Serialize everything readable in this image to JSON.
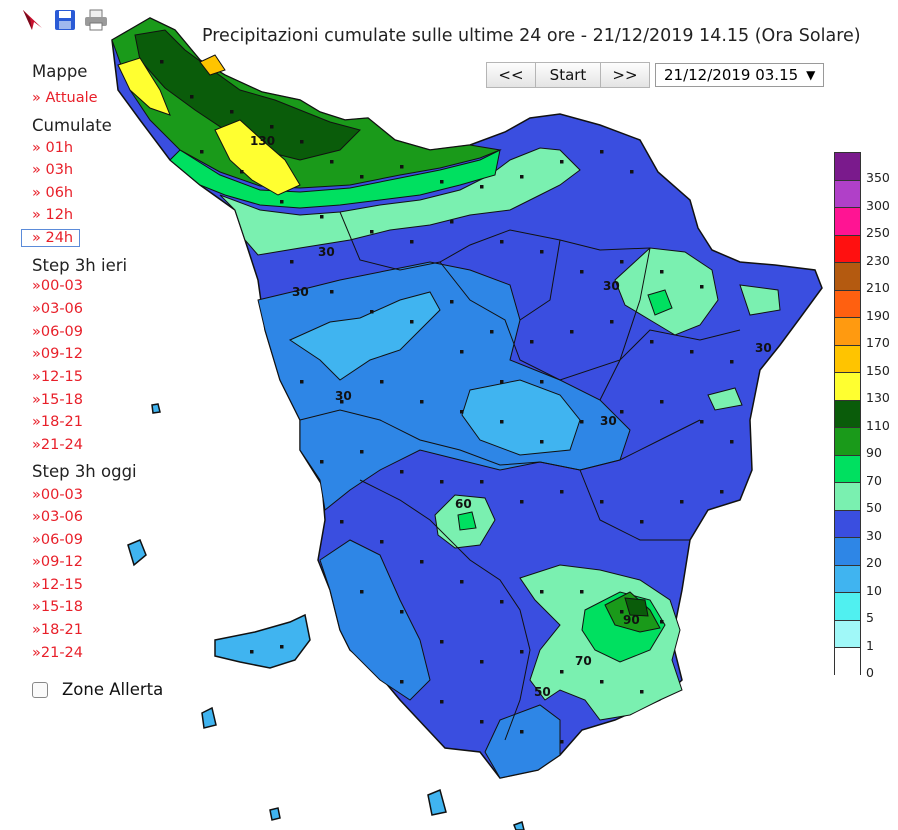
{
  "title": "Precipitazioni cumulate sulle ultime 24 ore - 21/12/2019 14.15 (Ora Solare)",
  "toolbar": {
    "icons": [
      "north-arrow-icon",
      "save-icon",
      "print-icon"
    ]
  },
  "nav": {
    "prev": "<<",
    "start": "Start",
    "next": ">>",
    "selected_time": "21/12/2019 03.15"
  },
  "sidebar": {
    "mappe": {
      "title": "Mappe",
      "items": [
        "» Attuale"
      ]
    },
    "cumulate": {
      "title": "Cumulate",
      "items": [
        "» 01h",
        "» 03h",
        "» 06h",
        "» 12h",
        "» 24h"
      ],
      "selected": "» 24h"
    },
    "step_ieri": {
      "title": "Step 3h ieri",
      "items": [
        "»00-03",
        "»03-06",
        "»06-09",
        "»09-12",
        "»12-15",
        "»15-18",
        "»18-21",
        "»21-24"
      ]
    },
    "step_oggi": {
      "title": "Step 3h oggi",
      "items": [
        "»00-03",
        "»03-06",
        "»06-09",
        "»09-12",
        "»12-15",
        "»15-18",
        "»18-21",
        "»21-24"
      ]
    },
    "zone_allerta": {
      "label": "Zone Allerta",
      "checked": false
    }
  },
  "legend": {
    "classes": [
      {
        "label": "350",
        "color": "#7a1a8c"
      },
      {
        "label": "300",
        "color": "#b040c8"
      },
      {
        "label": "250",
        "color": "#ff1493"
      },
      {
        "label": "230",
        "color": "#ff1010"
      },
      {
        "label": "210",
        "color": "#b45a10"
      },
      {
        "label": "190",
        "color": "#ff6010"
      },
      {
        "label": "170",
        "color": "#ff9a10"
      },
      {
        "label": "150",
        "color": "#ffc400"
      },
      {
        "label": "130",
        "color": "#ffff30"
      },
      {
        "label": "110",
        "color": "#0a5c0a"
      },
      {
        "label": "90",
        "color": "#1a9a1a"
      },
      {
        "label": "70",
        "color": "#00e060"
      },
      {
        "label": "50",
        "color": "#7af0b0"
      },
      {
        "label": "30",
        "color": "#3a4ee0"
      },
      {
        "label": "20",
        "color": "#2e86e6"
      },
      {
        "label": "10",
        "color": "#40b4f0"
      },
      {
        "label": "5",
        "color": "#50f0f0"
      },
      {
        "label": "1",
        "color": "#a0f8f8"
      },
      {
        "label": "0",
        "color": "#ffffff"
      }
    ]
  },
  "map": {
    "contour_labels": [
      "130",
      "30",
      "30",
      "30",
      "30",
      "30",
      "60",
      "90",
      "70",
      "50",
      "30"
    ]
  }
}
